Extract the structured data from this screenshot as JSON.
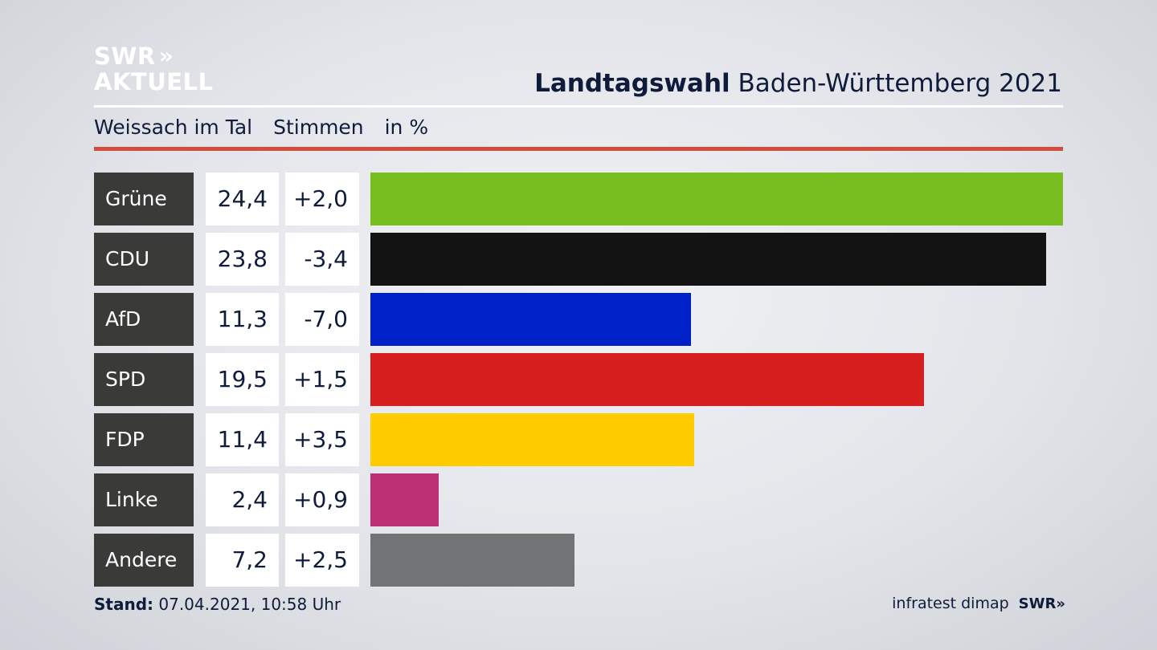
{
  "logo": {
    "line1": "SWR",
    "chevrons": "»",
    "line2": "AKTUELL"
  },
  "header": {
    "title_bold": "Landtagswahl",
    "title_rest": "Baden-Württemberg 2021"
  },
  "subheader": {
    "location": "Weissach im Tal",
    "label_votes": "Stimmen",
    "label_unit": "in %"
  },
  "chart_data": {
    "type": "bar",
    "orientation": "horizontal",
    "categories": [
      "Grüne",
      "CDU",
      "AfD",
      "SPD",
      "FDP",
      "Linke",
      "Andere"
    ],
    "values": [
      24.4,
      23.8,
      11.3,
      19.5,
      11.4,
      2.4,
      7.2
    ],
    "values_label": [
      "24,4",
      "23,8",
      "11,3",
      "19,5",
      "11,4",
      "2,4",
      "7,2"
    ],
    "differences": [
      2.0,
      -3.4,
      -7.0,
      1.5,
      3.5,
      0.9,
      2.5
    ],
    "differences_label": [
      "+2,0",
      "-3,4",
      "-7,0",
      "+1,5",
      "+3,5",
      "+0,9",
      "+2,5"
    ],
    "colors": [
      "#78be1e",
      "#131313",
      "#0021c8",
      "#d61f1f",
      "#ffcc00",
      "#be3075",
      "#727375"
    ],
    "xlim": [
      0,
      24.4
    ],
    "grid": false,
    "legend": "none"
  },
  "footer": {
    "stand_label": "Stand:",
    "stand_value": "07.04.2021, 10:58 Uhr",
    "source": "infratest dimap",
    "logo_text": "SWR",
    "logo_chevrons": "»"
  }
}
